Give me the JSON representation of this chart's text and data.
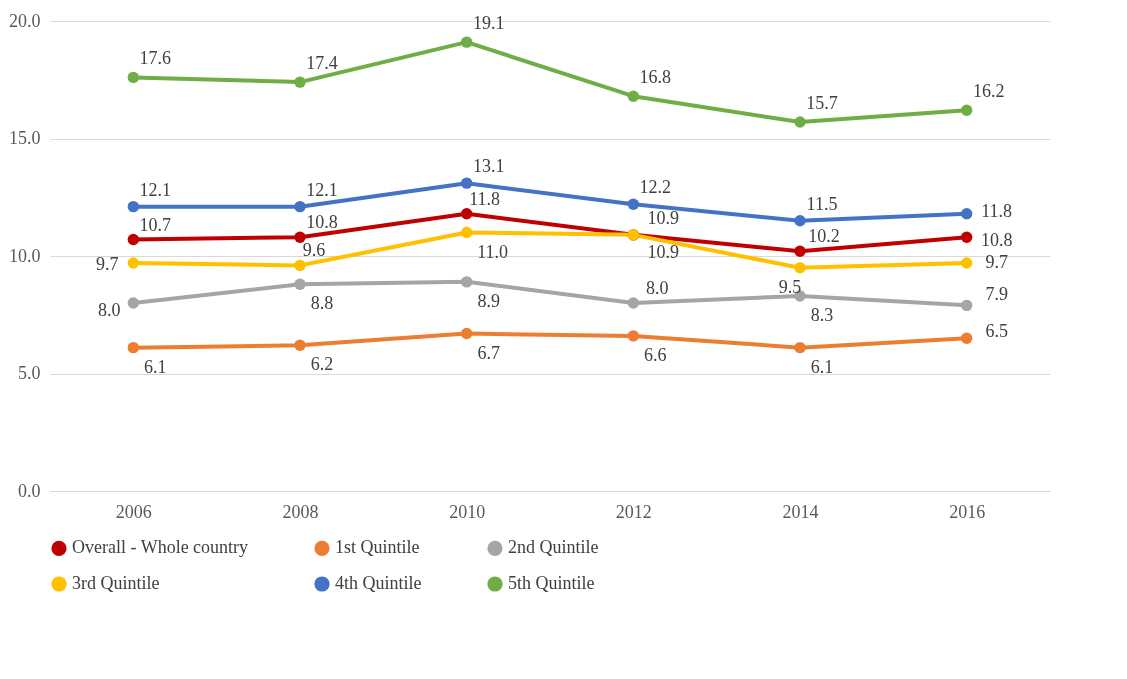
{
  "chart_data": {
    "type": "line",
    "categories": [
      "2006",
      "2008",
      "2010",
      "2012",
      "2014",
      "2016"
    ],
    "series": [
      {
        "name": "Overall - Whole country",
        "color": "#c00000",
        "values": [
          10.7,
          10.8,
          11.8,
          10.9,
          10.2,
          10.8
        ],
        "value_labels": [
          "10.7",
          "10.8",
          "11.8",
          "10.9",
          "10.2",
          "10.8"
        ]
      },
      {
        "name": "1st Quintile",
        "color": "#ed7d31",
        "values": [
          6.1,
          6.2,
          6.7,
          6.6,
          6.1,
          6.5
        ],
        "value_labels": [
          "6.1",
          "6.2",
          "6.7",
          "6.6",
          "6.1",
          "6.5"
        ]
      },
      {
        "name": "2nd Quintile",
        "color": "#a5a5a5",
        "values": [
          8.0,
          8.8,
          8.9,
          8.0,
          8.3,
          7.9
        ],
        "value_labels": [
          "8.0",
          "8.8",
          "8.9",
          "8.0",
          "8.3",
          "7.9"
        ]
      },
      {
        "name": "3rd Quintile",
        "color": "#ffc000",
        "values": [
          9.7,
          9.6,
          11.0,
          10.9,
          9.5,
          9.7
        ],
        "value_labels": [
          "9.7",
          "9.6",
          "11.0",
          "10.9",
          "9.5",
          "9.7"
        ]
      },
      {
        "name": "4th Quintile",
        "color": "#4472c4",
        "values": [
          12.1,
          12.1,
          13.1,
          12.2,
          11.5,
          11.8
        ],
        "value_labels": [
          "12.1",
          "12.1",
          "13.1",
          "12.2",
          "11.5",
          "11.8"
        ]
      },
      {
        "name": "5th Quintile",
        "color": "#70ad47",
        "values": [
          17.6,
          17.4,
          19.1,
          16.8,
          15.7,
          16.2
        ],
        "value_labels": [
          "17.6",
          "17.4",
          "19.1",
          "16.8",
          "15.7",
          "16.2"
        ]
      }
    ],
    "ylim": [
      0,
      20
    ],
    "yticks": [
      {
        "value": 0,
        "label": "0.0"
      },
      {
        "value": 5,
        "label": "5.0"
      },
      {
        "value": 10,
        "label": "10.0"
      },
      {
        "value": 15,
        "label": "15.0"
      },
      {
        "value": 20,
        "label": "20.0"
      }
    ],
    "grid": "y",
    "legend": "bottom",
    "marker": "circle",
    "line_style": "solid"
  }
}
